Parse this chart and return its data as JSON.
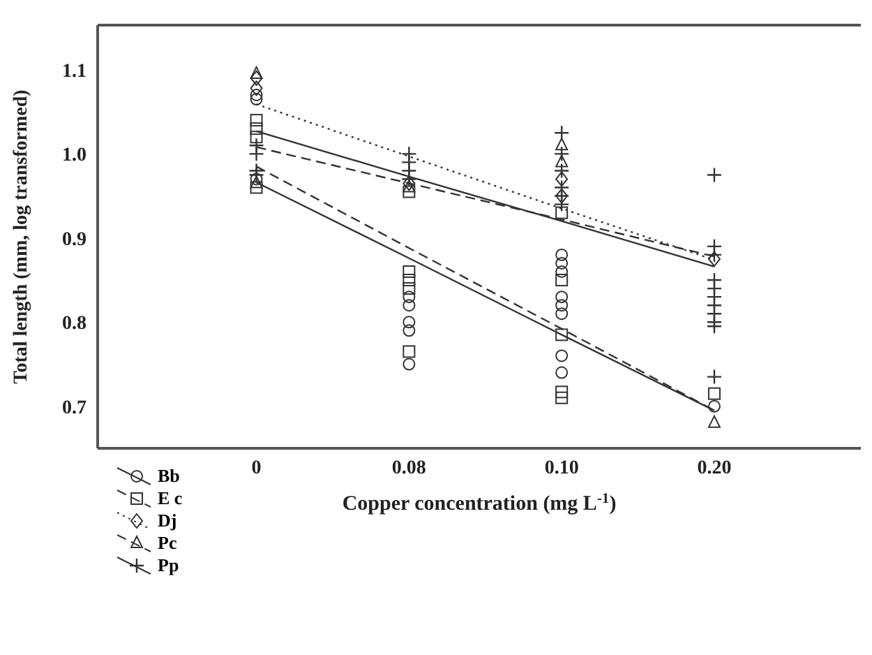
{
  "chart_data": {
    "type": "scatter",
    "xlabel": "Copper concentration (mg L$^{-1}$)",
    "ylabel": "Total length (mm, log transformed)",
    "categories": [
      "0",
      "0.08",
      "0.10",
      "0.20"
    ],
    "ylim": [
      0.65,
      1.153
    ],
    "yticks": [
      {
        "value": 0.7,
        "label": "0.7"
      },
      {
        "value": 0.8,
        "label": "0.8"
      },
      {
        "value": 0.9,
        "label": "0.9"
      },
      {
        "value": 1,
        "label": "1.0"
      },
      {
        "value": 1.1,
        "label": "1.1"
      }
    ],
    "legend": "bottom left",
    "series": [
      {
        "name": "Bb",
        "marker": "circle",
        "color": "#333333",
        "x": [
          "0",
          "0",
          "0",
          "0.08",
          "0.08",
          "0.08",
          "0.08",
          "0.08",
          "0.10",
          "0.10",
          "0.10",
          "0.10",
          "0.10",
          "0.10",
          "0.10",
          "0.10",
          "0.20"
        ],
        "values": [
          1.07,
          1.065,
          0.97,
          0.83,
          0.82,
          0.8,
          0.79,
          0.75,
          0.88,
          0.87,
          0.86,
          0.83,
          0.82,
          0.81,
          0.76,
          0.74,
          0.7
        ]
      },
      {
        "name": "E c",
        "marker": "square",
        "color": "#333333",
        "x": [
          "0",
          "0",
          "0",
          "0",
          "0.08",
          "0.08",
          "0.08",
          "0.08",
          "0.08",
          "0.10",
          "0.10",
          "0.10",
          "0.10",
          "0.10",
          "0.20"
        ],
        "values": [
          1.04,
          1.03,
          1.02,
          0.96,
          0.955,
          0.86,
          0.85,
          0.84,
          0.765,
          0.93,
          0.85,
          0.785,
          0.717,
          0.71,
          0.715
        ]
      },
      {
        "name": "Dj",
        "marker": "diamond",
        "color": "#333333",
        "x": [
          "0",
          "0",
          "0.08",
          "0.10",
          "0.10",
          "0.20"
        ],
        "values": [
          1.09,
          1.078,
          0.965,
          0.97,
          0.95,
          0.875
        ]
      },
      {
        "name": "Pc",
        "marker": "triangle",
        "color": "#333333",
        "x": [
          "0",
          "0",
          "0.08",
          "0.10",
          "0.10",
          "0.20"
        ],
        "values": [
          1.095,
          0.965,
          0.96,
          1.01,
          0.99,
          0.68
        ]
      },
      {
        "name": "Pp",
        "marker": "cross",
        "color": "#333333",
        "x": [
          "0",
          "0",
          "0",
          "0",
          "0.08",
          "0.08",
          "0.08",
          "0.08",
          "0.10",
          "0.10",
          "0.10",
          "0.10",
          "0.10",
          "0.10",
          "0.20",
          "0.20",
          "0.20",
          "0.20",
          "0.20",
          "0.20",
          "0.20",
          "0.20",
          "0.20",
          "0.20",
          "0.20"
        ],
        "values": [
          1.01,
          1.0,
          0.98,
          0.975,
          1.0,
          0.99,
          0.98,
          0.97,
          1.025,
          1.0,
          0.98,
          0.96,
          0.95,
          0.94,
          0.975,
          0.89,
          0.88,
          0.85,
          0.84,
          0.83,
          0.82,
          0.81,
          0.8,
          0.795,
          0.735
        ]
      },
      {
        "type": "line",
        "line_style": "solid",
        "color": "#333333",
        "values": [
          0.966,
          0.876,
          0.785,
          0.695
        ]
      },
      {
        "type": "line",
        "line_style": "dashed",
        "color": "#333333",
        "values": [
          0.985,
          0.888,
          0.792,
          0.695
        ]
      },
      {
        "type": "line",
        "line_style": "dotted",
        "color": "#333333",
        "values": [
          1.059,
          0.997,
          0.935,
          0.874
        ]
      },
      {
        "type": "line",
        "line_style": "dashed",
        "color": "#333333",
        "values": [
          1.008,
          0.965,
          0.922,
          0.878
        ]
      },
      {
        "type": "line",
        "line_style": "solid",
        "color": "#333333",
        "values": [
          1.027,
          0.973,
          0.92,
          0.866
        ]
      }
    ]
  }
}
